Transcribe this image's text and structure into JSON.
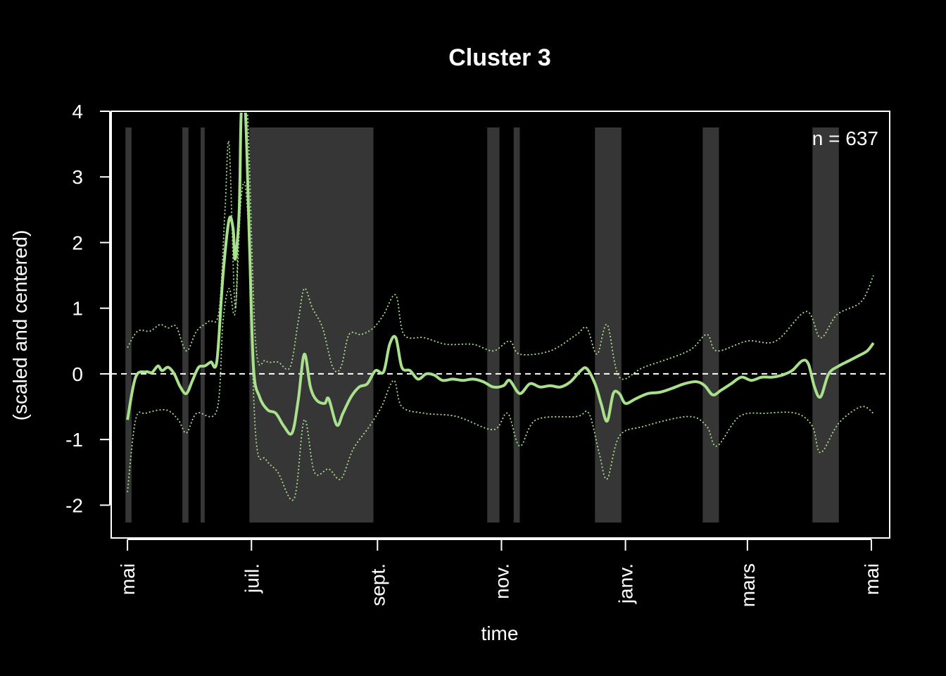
{
  "chart_data": {
    "type": "line",
    "title": "Cluster 3",
    "xlabel": "time",
    "ylabel": "(scaled and centered)",
    "annotation": "n = 637",
    "xlim": [
      "2023-04-23",
      "2024-05-10"
    ],
    "ylim": [
      -2.5,
      4.0
    ],
    "x_ticks": [
      {
        "date": "2023-05-01",
        "label": "mai"
      },
      {
        "date": "2023-07-01",
        "label": "juil."
      },
      {
        "date": "2023-09-01",
        "label": "sept."
      },
      {
        "date": "2023-11-01",
        "label": "nov."
      },
      {
        "date": "2024-01-01",
        "label": "janv."
      },
      {
        "date": "2024-03-01",
        "label": "mars"
      },
      {
        "date": "2024-05-01",
        "label": "mai"
      }
    ],
    "y_ticks": [
      -2,
      -1,
      0,
      1,
      2,
      3,
      4
    ],
    "reference_line": 0,
    "shaded_periods": [
      [
        "2023-04-30",
        "2023-05-03"
      ],
      [
        "2023-05-28",
        "2023-05-31"
      ],
      [
        "2023-06-06",
        "2023-06-08"
      ],
      [
        "2023-06-30",
        "2023-08-30"
      ],
      [
        "2023-10-25",
        "2023-10-31"
      ],
      [
        "2023-11-07",
        "2023-11-10"
      ],
      [
        "2023-12-17",
        "2023-12-30"
      ],
      [
        "2024-02-08",
        "2024-02-16"
      ],
      [
        "2024-04-02",
        "2024-04-15"
      ]
    ],
    "colors": {
      "line": "#a8e08c",
      "shade": "#363636",
      "axis": "#ffffff",
      "background": "#000000"
    },
    "series": [
      {
        "role": "mean",
        "style": "solid",
        "points": [
          [
            "2023-05-01",
            -0.7
          ],
          [
            "2023-05-05",
            -0.05
          ],
          [
            "2023-05-10",
            0.03
          ],
          [
            "2023-05-13",
            0.02
          ],
          [
            "2023-05-16",
            0.12
          ],
          [
            "2023-05-18",
            0.05
          ],
          [
            "2023-05-21",
            0.1
          ],
          [
            "2023-05-24",
            0.0
          ],
          [
            "2023-05-27",
            -0.2
          ],
          [
            "2023-05-30",
            -0.3
          ],
          [
            "2023-06-02",
            -0.1
          ],
          [
            "2023-06-05",
            0.1
          ],
          [
            "2023-06-08",
            0.12
          ],
          [
            "2023-06-11",
            0.18
          ],
          [
            "2023-06-14",
            0.2
          ],
          [
            "2023-06-17",
            1.5
          ],
          [
            "2023-06-20",
            2.35
          ],
          [
            "2023-06-22",
            2.2
          ],
          [
            "2023-06-23",
            1.75
          ],
          [
            "2023-06-25",
            2.5
          ],
          [
            "2023-06-26",
            4.0
          ],
          [
            "2023-06-28",
            4.0
          ],
          [
            "2023-06-30",
            2.0
          ],
          [
            "2023-07-02",
            0.1
          ],
          [
            "2023-07-05",
            -0.35
          ],
          [
            "2023-07-09",
            -0.55
          ],
          [
            "2023-07-13",
            -0.6
          ],
          [
            "2023-07-17",
            -0.8
          ],
          [
            "2023-07-21",
            -0.9
          ],
          [
            "2023-07-24",
            -0.4
          ],
          [
            "2023-07-27",
            0.3
          ],
          [
            "2023-07-30",
            -0.2
          ],
          [
            "2023-08-02",
            -0.4
          ],
          [
            "2023-08-06",
            -0.45
          ],
          [
            "2023-08-08",
            -0.38
          ],
          [
            "2023-08-12",
            -0.78
          ],
          [
            "2023-08-15",
            -0.6
          ],
          [
            "2023-08-19",
            -0.35
          ],
          [
            "2023-08-23",
            -0.2
          ],
          [
            "2023-08-27",
            -0.15
          ],
          [
            "2023-08-31",
            0.05
          ],
          [
            "2023-09-04",
            0.03
          ],
          [
            "2023-09-07",
            0.45
          ],
          [
            "2023-09-10",
            0.55
          ],
          [
            "2023-09-13",
            0.1
          ],
          [
            "2023-09-17",
            0.05
          ],
          [
            "2023-09-21",
            -0.08
          ],
          [
            "2023-09-25",
            0.0
          ],
          [
            "2023-09-29",
            -0.02
          ],
          [
            "2023-10-03",
            -0.1
          ],
          [
            "2023-10-08",
            -0.08
          ],
          [
            "2023-10-13",
            -0.1
          ],
          [
            "2023-10-18",
            -0.08
          ],
          [
            "2023-10-23",
            -0.12
          ],
          [
            "2023-10-28",
            -0.2
          ],
          [
            "2023-11-02",
            -0.18
          ],
          [
            "2023-11-05",
            -0.1
          ],
          [
            "2023-11-10",
            -0.3
          ],
          [
            "2023-11-15",
            -0.15
          ],
          [
            "2023-11-20",
            -0.2
          ],
          [
            "2023-11-25",
            -0.18
          ],
          [
            "2023-11-30",
            -0.2
          ],
          [
            "2023-12-05",
            -0.12
          ],
          [
            "2023-12-10",
            0.05
          ],
          [
            "2023-12-13",
            0.08
          ],
          [
            "2023-12-17",
            -0.15
          ],
          [
            "2023-12-20",
            -0.45
          ],
          [
            "2023-12-23",
            -0.72
          ],
          [
            "2023-12-26",
            -0.3
          ],
          [
            "2023-12-29",
            -0.3
          ],
          [
            "2024-01-01",
            -0.45
          ],
          [
            "2024-01-06",
            -0.38
          ],
          [
            "2024-01-12",
            -0.3
          ],
          [
            "2024-01-18",
            -0.28
          ],
          [
            "2024-01-24",
            -0.22
          ],
          [
            "2024-01-30",
            -0.15
          ],
          [
            "2024-02-05",
            -0.12
          ],
          [
            "2024-02-09",
            -0.18
          ],
          [
            "2024-02-13",
            -0.32
          ],
          [
            "2024-02-17",
            -0.25
          ],
          [
            "2024-02-22",
            -0.15
          ],
          [
            "2024-02-27",
            -0.05
          ],
          [
            "2024-03-03",
            -0.1
          ],
          [
            "2024-03-08",
            -0.05
          ],
          [
            "2024-03-13",
            -0.05
          ],
          [
            "2024-03-18",
            -0.02
          ],
          [
            "2024-03-23",
            0.05
          ],
          [
            "2024-03-28",
            0.2
          ],
          [
            "2024-03-31",
            0.15
          ],
          [
            "2024-04-03",
            -0.2
          ],
          [
            "2024-04-06",
            -0.35
          ],
          [
            "2024-04-10",
            0.0
          ],
          [
            "2024-04-15",
            0.12
          ],
          [
            "2024-04-20",
            0.2
          ],
          [
            "2024-04-25",
            0.28
          ],
          [
            "2024-04-29",
            0.35
          ],
          [
            "2024-05-02",
            0.47
          ]
        ]
      },
      {
        "role": "upper band",
        "style": "dotted",
        "points": [
          [
            "2023-05-01",
            0.4
          ],
          [
            "2023-05-06",
            0.65
          ],
          [
            "2023-05-12",
            0.65
          ],
          [
            "2023-05-17",
            0.75
          ],
          [
            "2023-05-21",
            0.7
          ],
          [
            "2023-05-25",
            0.72
          ],
          [
            "2023-05-30",
            0.35
          ],
          [
            "2023-06-04",
            0.65
          ],
          [
            "2023-06-10",
            0.8
          ],
          [
            "2023-06-15",
            0.95
          ],
          [
            "2023-06-18",
            2.5
          ],
          [
            "2023-06-20",
            3.5
          ],
          [
            "2023-06-23",
            1.0
          ],
          [
            "2023-06-25",
            3.0
          ],
          [
            "2023-06-26",
            4.0
          ],
          [
            "2023-06-29",
            4.0
          ],
          [
            "2023-07-03",
            0.5
          ],
          [
            "2023-07-08",
            0.2
          ],
          [
            "2023-07-14",
            0.18
          ],
          [
            "2023-07-20",
            0.1
          ],
          [
            "2023-07-24",
            0.8
          ],
          [
            "2023-07-27",
            1.3
          ],
          [
            "2023-07-31",
            1.0
          ],
          [
            "2023-08-05",
            0.7
          ],
          [
            "2023-08-10",
            0.1
          ],
          [
            "2023-08-14",
            0.1
          ],
          [
            "2023-08-18",
            0.6
          ],
          [
            "2023-08-24",
            0.6
          ],
          [
            "2023-08-30",
            0.7
          ],
          [
            "2023-09-04",
            0.9
          ],
          [
            "2023-09-10",
            1.2
          ],
          [
            "2023-09-14",
            0.6
          ],
          [
            "2023-09-24",
            0.55
          ],
          [
            "2023-10-05",
            0.45
          ],
          [
            "2023-10-18",
            0.45
          ],
          [
            "2023-10-28",
            0.35
          ],
          [
            "2023-11-05",
            0.5
          ],
          [
            "2023-11-10",
            0.3
          ],
          [
            "2023-11-25",
            0.35
          ],
          [
            "2023-12-08",
            0.6
          ],
          [
            "2023-12-13",
            0.7
          ],
          [
            "2023-12-18",
            0.3
          ],
          [
            "2023-12-23",
            0.75
          ],
          [
            "2023-12-29",
            -0.05
          ],
          [
            "2024-01-10",
            0.1
          ],
          [
            "2024-02-01",
            0.35
          ],
          [
            "2024-02-10",
            0.6
          ],
          [
            "2024-02-15",
            0.35
          ],
          [
            "2024-03-01",
            0.5
          ],
          [
            "2024-03-15",
            0.5
          ],
          [
            "2024-03-30",
            0.95
          ],
          [
            "2024-04-06",
            0.55
          ],
          [
            "2024-04-14",
            0.9
          ],
          [
            "2024-04-26",
            1.1
          ],
          [
            "2024-05-02",
            1.5
          ]
        ]
      },
      {
        "role": "lower band",
        "style": "dotted",
        "points": [
          [
            "2023-05-01",
            -1.8
          ],
          [
            "2023-05-05",
            -0.7
          ],
          [
            "2023-05-10",
            -0.6
          ],
          [
            "2023-05-20",
            -0.55
          ],
          [
            "2023-05-26",
            -0.7
          ],
          [
            "2023-05-30",
            -0.9
          ],
          [
            "2023-06-04",
            -0.6
          ],
          [
            "2023-06-14",
            -0.55
          ],
          [
            "2023-06-17",
            0.8
          ],
          [
            "2023-06-20",
            1.3
          ],
          [
            "2023-06-23",
            0.95
          ],
          [
            "2023-06-26",
            2.7
          ],
          [
            "2023-06-29",
            2.5
          ],
          [
            "2023-07-03",
            -0.9
          ],
          [
            "2023-07-08",
            -1.3
          ],
          [
            "2023-07-14",
            -1.5
          ],
          [
            "2023-07-22",
            -1.9
          ],
          [
            "2023-07-27",
            -0.7
          ],
          [
            "2023-08-01",
            -1.5
          ],
          [
            "2023-08-08",
            -1.45
          ],
          [
            "2023-08-14",
            -1.6
          ],
          [
            "2023-08-20",
            -1.15
          ],
          [
            "2023-08-28",
            -0.8
          ],
          [
            "2023-09-03",
            -0.5
          ],
          [
            "2023-09-09",
            -0.1
          ],
          [
            "2023-09-13",
            -0.5
          ],
          [
            "2023-09-24",
            -0.6
          ],
          [
            "2023-10-10",
            -0.65
          ],
          [
            "2023-10-28",
            -0.85
          ],
          [
            "2023-11-04",
            -0.6
          ],
          [
            "2023-11-10",
            -1.1
          ],
          [
            "2023-11-18",
            -0.7
          ],
          [
            "2023-12-08",
            -0.65
          ],
          [
            "2023-12-14",
            -0.6
          ],
          [
            "2023-12-19",
            -1.2
          ],
          [
            "2023-12-23",
            -1.6
          ],
          [
            "2023-12-29",
            -0.95
          ],
          [
            "2024-01-10",
            -0.8
          ],
          [
            "2024-02-01",
            -0.65
          ],
          [
            "2024-02-10",
            -0.8
          ],
          [
            "2024-02-15",
            -1.1
          ],
          [
            "2024-02-26",
            -0.65
          ],
          [
            "2024-03-10",
            -0.6
          ],
          [
            "2024-03-25",
            -0.6
          ],
          [
            "2024-04-02",
            -0.8
          ],
          [
            "2024-04-06",
            -1.2
          ],
          [
            "2024-04-15",
            -0.75
          ],
          [
            "2024-04-26",
            -0.5
          ],
          [
            "2024-05-02",
            -0.6
          ]
        ]
      }
    ]
  }
}
